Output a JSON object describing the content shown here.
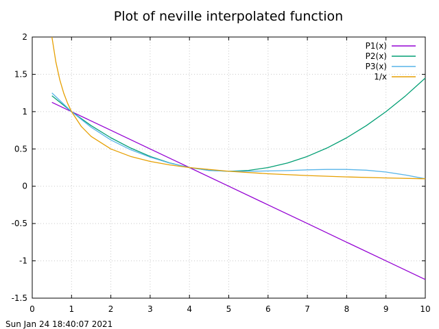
{
  "chart_data": {
    "type": "line",
    "title": "Plot of neville interpolated function",
    "xlabel": "",
    "ylabel": "",
    "xlim": [
      0,
      10
    ],
    "ylim": [
      -1.5,
      2
    ],
    "x_ticks": [
      "0",
      "1",
      "2",
      "3",
      "4",
      "5",
      "6",
      "7",
      "8",
      "9",
      "10"
    ],
    "y_ticks": [
      "-1.5",
      "-1",
      "-0.5",
      "0",
      "0.5",
      "1",
      "1.5",
      "2"
    ],
    "grid": true,
    "legend_position": "top-right",
    "series": [
      {
        "name": "P1(x)",
        "color": "#9400d3",
        "x": [
          0.5,
          1,
          2,
          3,
          4,
          5,
          6,
          7,
          8,
          9,
          10
        ],
        "y": [
          1.125,
          1.0,
          0.75,
          0.5,
          0.25,
          0.0,
          -0.25,
          -0.5,
          -0.75,
          -1.0,
          -1.25
        ]
      },
      {
        "name": "P2(x)",
        "color": "#009e73",
        "x": [
          0.5,
          1,
          1.5,
          2,
          2.5,
          3,
          3.5,
          4,
          4.5,
          5,
          5.5,
          6,
          6.5,
          7,
          7.5,
          8,
          8.5,
          9,
          9.5,
          10
        ],
        "y": [
          1.2125,
          1.0,
          0.8125,
          0.65,
          0.5125,
          0.4,
          0.3125,
          0.25,
          0.2125,
          0.2,
          0.2125,
          0.25,
          0.3125,
          0.4,
          0.5125,
          0.65,
          0.8125,
          1.0,
          1.2125,
          1.45
        ]
      },
      {
        "name": "P3(x)",
        "color": "#56b4e9",
        "x": [
          0.5,
          1,
          1.5,
          2,
          2.5,
          3,
          3.5,
          4,
          4.5,
          5,
          5.5,
          6,
          6.5,
          7,
          7.5,
          8,
          8.5,
          9,
          9.5,
          10
        ],
        "y": [
          1.25,
          1.0,
          0.79,
          0.62,
          0.49,
          0.39,
          0.31,
          0.25,
          0.21,
          0.2,
          0.2,
          0.205,
          0.21,
          0.22,
          0.225,
          0.225,
          0.215,
          0.19,
          0.15,
          0.1
        ]
      },
      {
        "name": "1/x",
        "color": "#e69f00",
        "x": [
          0.5,
          0.6,
          0.7,
          0.8,
          0.9,
          1,
          1.25,
          1.5,
          2,
          2.5,
          3,
          3.5,
          4,
          5,
          6,
          7,
          8,
          9,
          10
        ],
        "y": [
          2.0,
          1.667,
          1.429,
          1.25,
          1.111,
          1.0,
          0.8,
          0.667,
          0.5,
          0.4,
          0.333,
          0.286,
          0.25,
          0.2,
          0.167,
          0.143,
          0.125,
          0.111,
          0.1
        ]
      }
    ]
  },
  "footer": {
    "timestamp": "Sun Jan 24 18:40:07 2021"
  }
}
